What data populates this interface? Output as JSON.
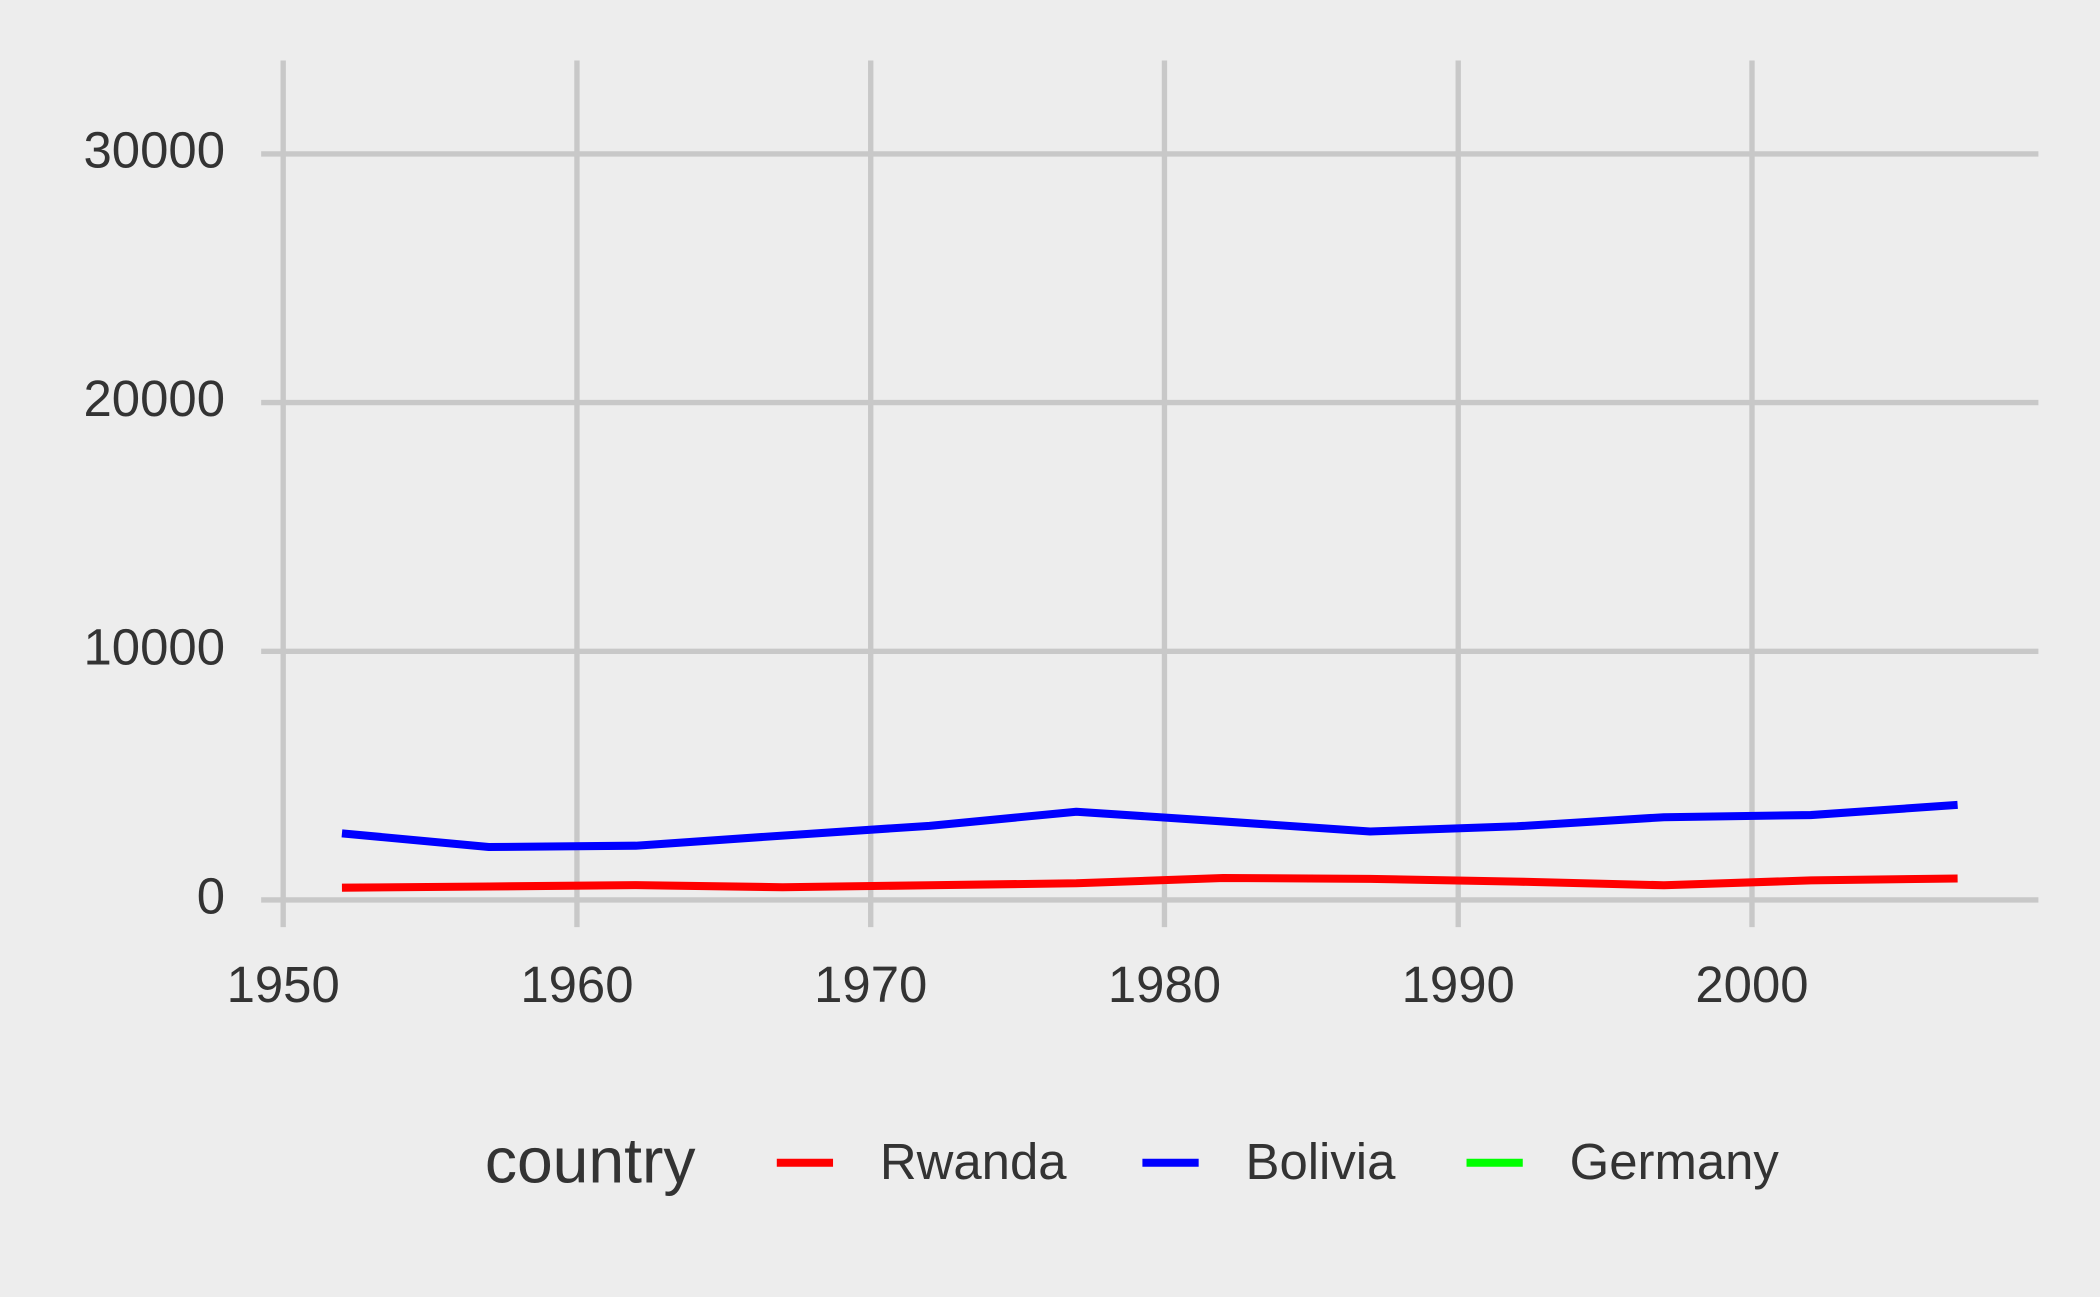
{
  "chart_data": {
    "type": "line",
    "x": [
      1952,
      1957,
      1962,
      1967,
      1972,
      1977,
      1982,
      1987,
      1992,
      1997,
      2002,
      2007
    ],
    "series": [
      {
        "name": "Rwanda",
        "color": "#ff0000",
        "values": [
          493.32,
          540.29,
          597.47,
          510.96,
          590.58,
          670.08,
          881.57,
          847.99,
          737.07,
          589.94,
          785.65,
          863.09
        ]
      },
      {
        "name": "Bolivia",
        "color": "#0000ff",
        "values": [
          2677.33,
          2127.69,
          2180.97,
          2586.89,
          2980.33,
          3548.1,
          3156.51,
          2753.69,
          2961.7,
          3326.14,
          3413.26,
          3822.14
        ]
      },
      {
        "name": "Germany",
        "color": "#00ff00",
        "values": [
          null,
          null,
          null,
          null,
          null,
          null,
          null,
          null,
          null,
          null,
          null,
          null
        ]
      }
    ],
    "xlim": [
      1949.25,
      2009.75
    ],
    "xticks": [
      1950,
      1960,
      1970,
      1980,
      1990,
      2000
    ],
    "ylim": [
      -1091,
      33754
    ],
    "yticks": [
      0,
      10000,
      20000,
      30000
    ],
    "grid": true,
    "legend": "bottom",
    "legend_title": "country"
  }
}
